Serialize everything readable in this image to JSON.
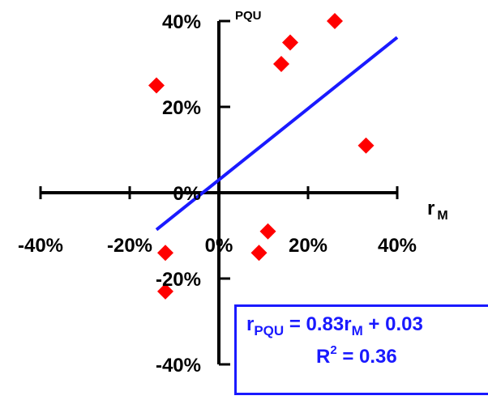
{
  "chart_data": {
    "type": "scatter",
    "title": "",
    "xlabel": "r M",
    "ylabel": "PQU",
    "xlim": [
      -40,
      40
    ],
    "ylim": [
      -40,
      40
    ],
    "x_ticks": [
      -40,
      -20,
      0,
      20,
      40
    ],
    "y_ticks": [
      -40,
      -20,
      0,
      20,
      40
    ],
    "x_tick_labels": [
      "-40%",
      "-20%",
      "0%",
      "20%",
      "40%"
    ],
    "y_tick_labels": [
      "-40%",
      "-20%",
      "0%",
      "20%",
      "40%"
    ],
    "grid": false,
    "marker_color": "#ff0000",
    "line_color": "#1a1aff",
    "points": [
      {
        "x": -14,
        "y": 25
      },
      {
        "x": -12,
        "y": -14
      },
      {
        "x": -12,
        "y": -23
      },
      {
        "x": 9,
        "y": -14
      },
      {
        "x": 11,
        "y": -9
      },
      {
        "x": 14,
        "y": 30
      },
      {
        "x": 16,
        "y": 35
      },
      {
        "x": 26,
        "y": 40
      },
      {
        "x": 33,
        "y": 11
      }
    ],
    "regression": {
      "slope": 0.83,
      "intercept": 3,
      "x_range": [
        -14,
        40
      ]
    },
    "equation": {
      "r": "r",
      "lhs_sub": "PQU",
      "mid": " = 0.83r",
      "rhs_sub": "M",
      "tail": " + 0.03",
      "r2_base": "R",
      "r2_sup": "2",
      "r2_tail": " = 0.36"
    }
  }
}
